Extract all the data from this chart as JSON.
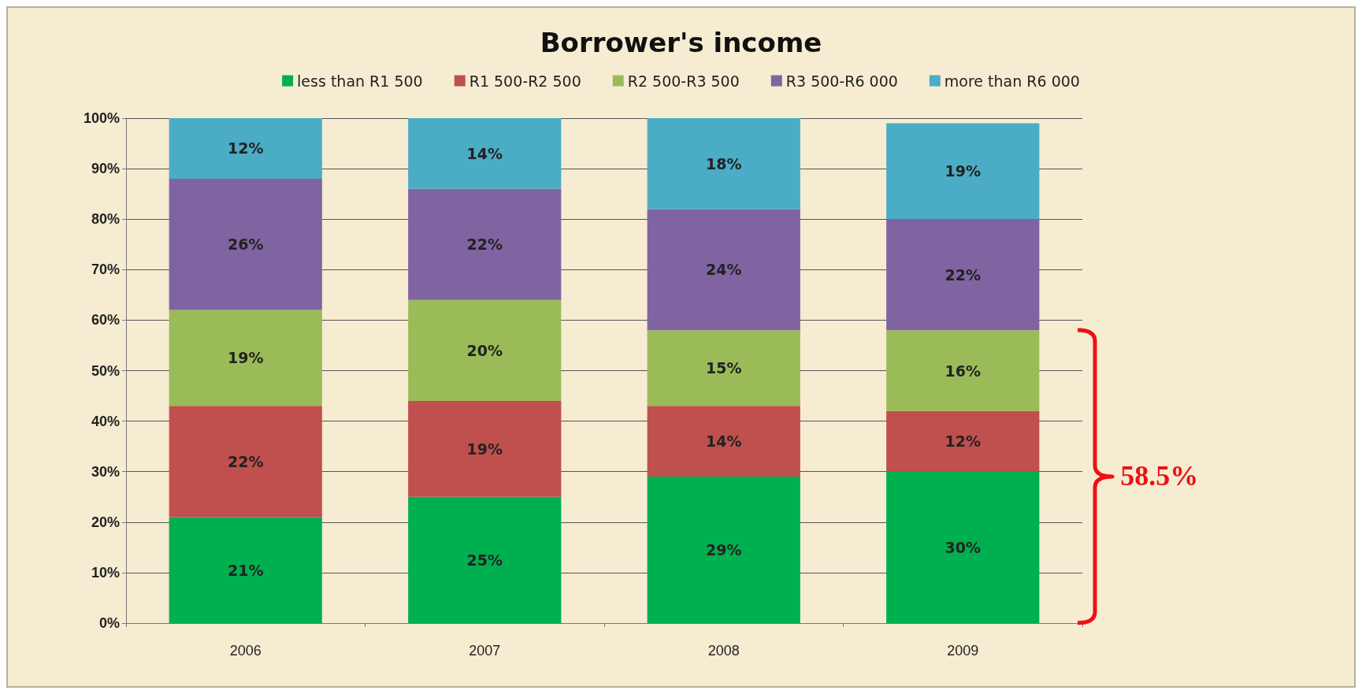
{
  "chart_data": {
    "type": "bar",
    "title": "Borrower's income",
    "categories": [
      "2006",
      "2007",
      "2008",
      "2009"
    ],
    "stacked": true,
    "series": [
      {
        "name": "less than R1 500",
        "color": "#00b050",
        "values": [
          21,
          25,
          29,
          30
        ],
        "value_labels": [
          "21%",
          "25%",
          "29%",
          "30%"
        ]
      },
      {
        "name": "R1 500-R2 500",
        "color": "#c0504d",
        "values": [
          22,
          19,
          14,
          12
        ],
        "value_labels": [
          "22%",
          "19%",
          "14%",
          "12%"
        ]
      },
      {
        "name": "R2 500-R3 500",
        "color": "#9bbb59",
        "values": [
          19,
          20,
          15,
          16
        ],
        "value_labels": [
          "19%",
          "20%",
          "15%",
          "16%"
        ]
      },
      {
        "name": "R3 500-R6 000",
        "color": "#8064a2",
        "values": [
          26,
          22,
          24,
          22
        ],
        "value_labels": [
          "26%",
          "22%",
          "24%",
          "22%"
        ]
      },
      {
        "name": "more than R6 000",
        "color": "#4bacc6",
        "values": [
          12,
          14,
          18,
          19
        ],
        "value_labels": [
          "12%",
          "14%",
          "18%",
          "19%"
        ]
      }
    ],
    "ylim": [
      0,
      100
    ],
    "yticks": [
      {
        "value": 0,
        "label": "0%"
      },
      {
        "value": 10,
        "label": "10%"
      },
      {
        "value": 20,
        "label": "20%"
      },
      {
        "value": 30,
        "label": "30%"
      },
      {
        "value": 40,
        "label": "40%"
      },
      {
        "value": 50,
        "label": "50%"
      },
      {
        "value": 60,
        "label": "60%"
      },
      {
        "value": 70,
        "label": "70%"
      },
      {
        "value": 80,
        "label": "80%"
      },
      {
        "value": 90,
        "label": "90%"
      },
      {
        "value": 100,
        "label": "100%"
      }
    ],
    "grid": "y",
    "legend": "top",
    "annotations": [
      "58.5%"
    ]
  }
}
